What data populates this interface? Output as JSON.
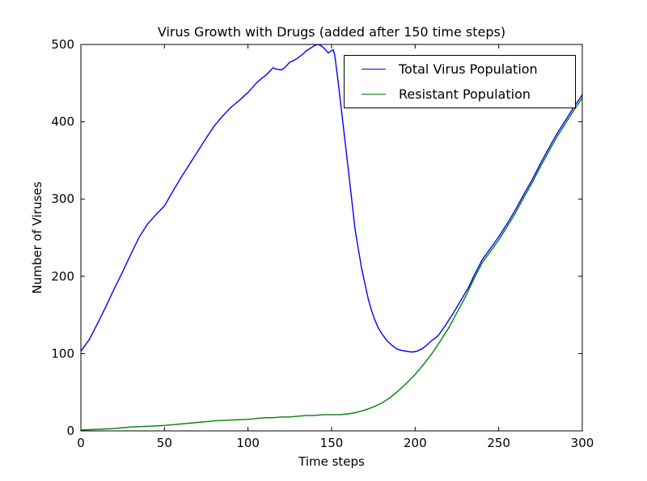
{
  "chart_data": {
    "type": "line",
    "title": "Virus Growth with Drugs (added after 150 time steps)",
    "xlabel": "Time steps",
    "ylabel": "Number of Viruses",
    "xlim": [
      0,
      300
    ],
    "ylim": [
      0,
      500
    ],
    "xticks": [
      0,
      50,
      100,
      150,
      200,
      250,
      300
    ],
    "yticks": [
      0,
      100,
      200,
      300,
      400,
      500
    ],
    "grid": false,
    "legend_position": "upper right",
    "axis_color": "#000000",
    "background_color": "#ffffff",
    "series": [
      {
        "name": "Total Virus Population",
        "color": "#0000ff",
        "points": [
          [
            0,
            103
          ],
          [
            5,
            118
          ],
          [
            10,
            139
          ],
          [
            15,
            161
          ],
          [
            20,
            184
          ],
          [
            25,
            206
          ],
          [
            30,
            229
          ],
          [
            35,
            251
          ],
          [
            40,
            268
          ],
          [
            45,
            280
          ],
          [
            50,
            291
          ],
          [
            55,
            310
          ],
          [
            60,
            328
          ],
          [
            65,
            345
          ],
          [
            70,
            362
          ],
          [
            75,
            379
          ],
          [
            80,
            395
          ],
          [
            85,
            408
          ],
          [
            90,
            419
          ],
          [
            95,
            428
          ],
          [
            100,
            438
          ],
          [
            105,
            450
          ],
          [
            108,
            456
          ],
          [
            110,
            459
          ],
          [
            112,
            463
          ],
          [
            115,
            470
          ],
          [
            117,
            468
          ],
          [
            120,
            467
          ],
          [
            122,
            470
          ],
          [
            125,
            477
          ],
          [
            128,
            480
          ],
          [
            130,
            483
          ],
          [
            133,
            488
          ],
          [
            135,
            492
          ],
          [
            138,
            496
          ],
          [
            140,
            499
          ],
          [
            142,
            500
          ],
          [
            144,
            498
          ],
          [
            146,
            494
          ],
          [
            148,
            489
          ],
          [
            150,
            492
          ],
          [
            151,
            493
          ],
          [
            152,
            485
          ],
          [
            154,
            450
          ],
          [
            156,
            413
          ],
          [
            158,
            376
          ],
          [
            160,
            338
          ],
          [
            162,
            300
          ],
          [
            164,
            262
          ],
          [
            166,
            235
          ],
          [
            168,
            210
          ],
          [
            170,
            190
          ],
          [
            172,
            170
          ],
          [
            174,
            155
          ],
          [
            176,
            143
          ],
          [
            178,
            133
          ],
          [
            180,
            126
          ],
          [
            183,
            117
          ],
          [
            186,
            111
          ],
          [
            189,
            106
          ],
          [
            192,
            104
          ],
          [
            195,
            103
          ],
          [
            198,
            102
          ],
          [
            201,
            103
          ],
          [
            204,
            106
          ],
          [
            207,
            111
          ],
          [
            210,
            117
          ],
          [
            212,
            120
          ],
          [
            214,
            124
          ],
          [
            216,
            130
          ],
          [
            218,
            136
          ],
          [
            220,
            143
          ],
          [
            223,
            153
          ],
          [
            226,
            164
          ],
          [
            229,
            175
          ],
          [
            232,
            186
          ],
          [
            235,
            200
          ],
          [
            240,
            221
          ],
          [
            245,
            236
          ],
          [
            250,
            251
          ],
          [
            255,
            268
          ],
          [
            260,
            286
          ],
          [
            265,
            306
          ],
          [
            270,
            325
          ],
          [
            275,
            346
          ],
          [
            280,
            366
          ],
          [
            285,
            385
          ],
          [
            290,
            402
          ],
          [
            295,
            419
          ],
          [
            300,
            435
          ]
        ]
      },
      {
        "name": "Resistant Population",
        "color": "#008000",
        "points": [
          [
            0,
            1
          ],
          [
            10,
            2
          ],
          [
            20,
            3
          ],
          [
            30,
            5
          ],
          [
            40,
            6
          ],
          [
            50,
            7
          ],
          [
            60,
            9
          ],
          [
            70,
            11
          ],
          [
            80,
            13
          ],
          [
            90,
            14
          ],
          [
            100,
            15
          ],
          [
            105,
            16
          ],
          [
            110,
            17
          ],
          [
            115,
            17
          ],
          [
            120,
            18
          ],
          [
            125,
            18
          ],
          [
            130,
            19
          ],
          [
            135,
            20
          ],
          [
            140,
            20
          ],
          [
            145,
            21
          ],
          [
            150,
            21
          ],
          [
            155,
            21
          ],
          [
            160,
            22
          ],
          [
            165,
            24
          ],
          [
            170,
            27
          ],
          [
            175,
            31
          ],
          [
            180,
            36
          ],
          [
            185,
            43
          ],
          [
            190,
            52
          ],
          [
            195,
            62
          ],
          [
            200,
            73
          ],
          [
            205,
            86
          ],
          [
            210,
            100
          ],
          [
            215,
            116
          ],
          [
            220,
            133
          ],
          [
            225,
            153
          ],
          [
            230,
            173
          ],
          [
            235,
            196
          ],
          [
            240,
            217
          ],
          [
            245,
            232
          ],
          [
            250,
            247
          ],
          [
            255,
            264
          ],
          [
            260,
            282
          ],
          [
            265,
            302
          ],
          [
            270,
            321
          ],
          [
            275,
            342
          ],
          [
            280,
            362
          ],
          [
            285,
            381
          ],
          [
            290,
            398
          ],
          [
            295,
            415
          ],
          [
            300,
            431
          ]
        ]
      }
    ]
  }
}
